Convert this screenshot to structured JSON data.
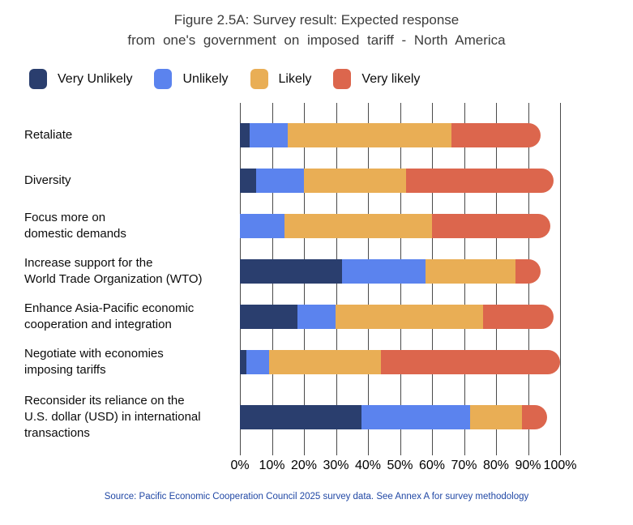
{
  "title": {
    "line1": "Figure 2.5A: Survey result: Expected response",
    "line2": "from one's government on imposed tariff - North America"
  },
  "source": "Source: Pacific Economic Cooperation Council 2025 survey data. See Annex A for survey methodology",
  "chart_data": {
    "type": "bar",
    "orientation": "horizontal",
    "stacked": true,
    "title": "Figure 2.5A: Survey result: Expected response from one's government on imposed tariff - North America",
    "categories": [
      "Retaliate",
      "Diversity",
      "Focus more on\ndomestic demands",
      "Increase support for the\nWorld Trade Organization (WTO)",
      "Enhance Asia-Pacific economic\ncooperation and integration",
      "Negotiate with economies\nimposing tariffs",
      "Reconsider its reliance on the\nU.S. dollar (USD) in international\ntransactions"
    ],
    "series": [
      {
        "name": "Very Unlikely",
        "color": "#2A3E6E",
        "values": [
          3,
          5,
          0,
          32,
          18,
          2,
          38
        ]
      },
      {
        "name": "Unlikely",
        "color": "#5B83EE",
        "values": [
          12,
          15,
          14,
          26,
          12,
          7,
          34
        ]
      },
      {
        "name": "Likely",
        "color": "#E9AE55",
        "values": [
          51,
          32,
          46,
          28,
          46,
          35,
          16
        ]
      },
      {
        "name": "Very likely",
        "color": "#DC664D",
        "values": [
          28,
          46,
          37,
          8,
          22,
          56,
          8
        ]
      }
    ],
    "x_ticks": [
      "0%",
      "10%",
      "20%",
      "30%",
      "40%",
      "50%",
      "60%",
      "70%",
      "80%",
      "90%",
      "100%"
    ],
    "xlim": [
      0,
      100
    ],
    "grid": "vertical-gridlines",
    "legend_position": "top-left",
    "bar_cap": "rounded-right-end"
  }
}
